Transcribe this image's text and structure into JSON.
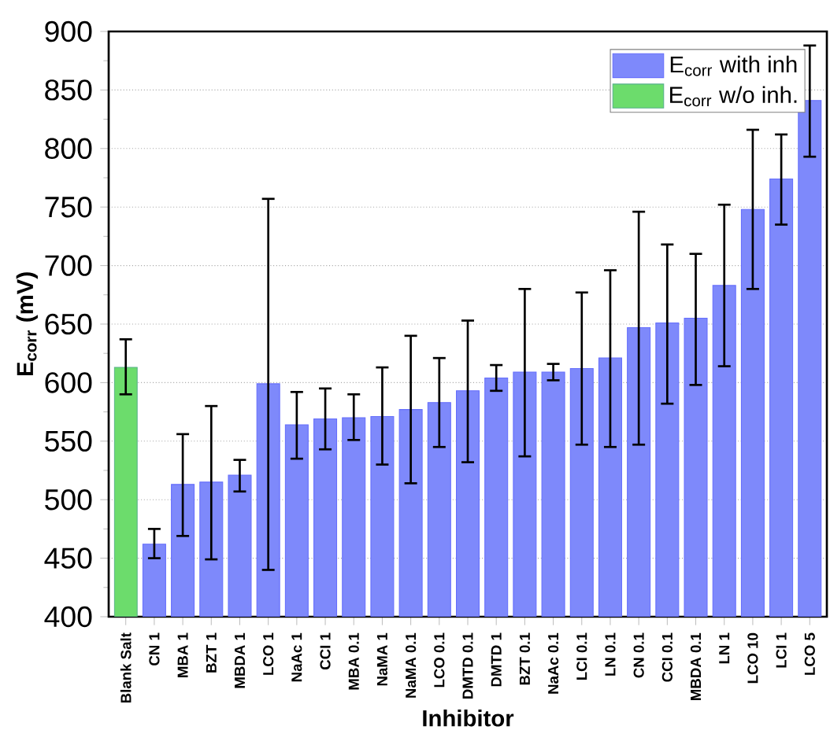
{
  "chart_data": {
    "type": "bar",
    "xlabel": "Inhibitor",
    "ylabel": "E$_{corr}$ (mV)",
    "categories": [
      "Blank Salt",
      "CN 1",
      "MBA 1",
      "BZT 1",
      "MBDA 1",
      "LCO 1",
      "NaAc 1",
      "CCI 1",
      "MBA 0.1",
      "NaMA 1",
      "NaMA 0.1",
      "LCO 0.1",
      "DMTD 0.1",
      "DMTD 1",
      "BZT 0.1",
      "NaAc 0.1",
      "LCI 0.1",
      "LN 0.1",
      "CN 0.1",
      "CCI 0.1",
      "MBDA 0.1",
      "LN 1",
      "LCO 10",
      "LCI 1",
      "LCO 5"
    ],
    "series": [
      {
        "name": "E$_{corr}$ with inh",
        "color": "#7e89fb",
        "values": [
          null,
          462,
          513,
          515,
          521,
          599,
          564,
          569,
          570,
          571,
          577,
          583,
          593,
          604,
          609,
          609,
          612,
          621,
          647,
          651,
          655,
          683,
          748,
          774,
          841
        ],
        "errors": [
          null,
          [
            450,
            475
          ],
          [
            469,
            556
          ],
          [
            449,
            580
          ],
          [
            507,
            534
          ],
          [
            440,
            757
          ],
          [
            535,
            592
          ],
          [
            543,
            595
          ],
          [
            551,
            590
          ],
          [
            530,
            613
          ],
          [
            514,
            640
          ],
          [
            545,
            621
          ],
          [
            532,
            653
          ],
          [
            593,
            615
          ],
          [
            537,
            680
          ],
          [
            602,
            616
          ],
          [
            547,
            677
          ],
          [
            545,
            696
          ],
          [
            547,
            746
          ],
          [
            582,
            718
          ],
          [
            598,
            710
          ],
          [
            614,
            752
          ],
          [
            680,
            816
          ],
          [
            735,
            812
          ],
          [
            793,
            888
          ]
        ]
      },
      {
        "name": "E$_{corr}$ w/o inh.",
        "color": "#6cdc6c",
        "values": [
          613,
          null,
          null,
          null,
          null,
          null,
          null,
          null,
          null,
          null,
          null,
          null,
          null,
          null,
          null,
          null,
          null,
          null,
          null,
          null,
          null,
          null,
          null,
          null,
          null
        ],
        "errors": [
          [
            590,
            637
          ],
          null,
          null,
          null,
          null,
          null,
          null,
          null,
          null,
          null,
          null,
          null,
          null,
          null,
          null,
          null,
          null,
          null,
          null,
          null,
          null,
          null,
          null,
          null,
          null
        ]
      }
    ],
    "ylim": [
      400,
      900
    ],
    "yticks": [
      400,
      450,
      500,
      550,
      600,
      650,
      700,
      750,
      800,
      850,
      900
    ],
    "grid": "y",
    "legend": "top right"
  }
}
